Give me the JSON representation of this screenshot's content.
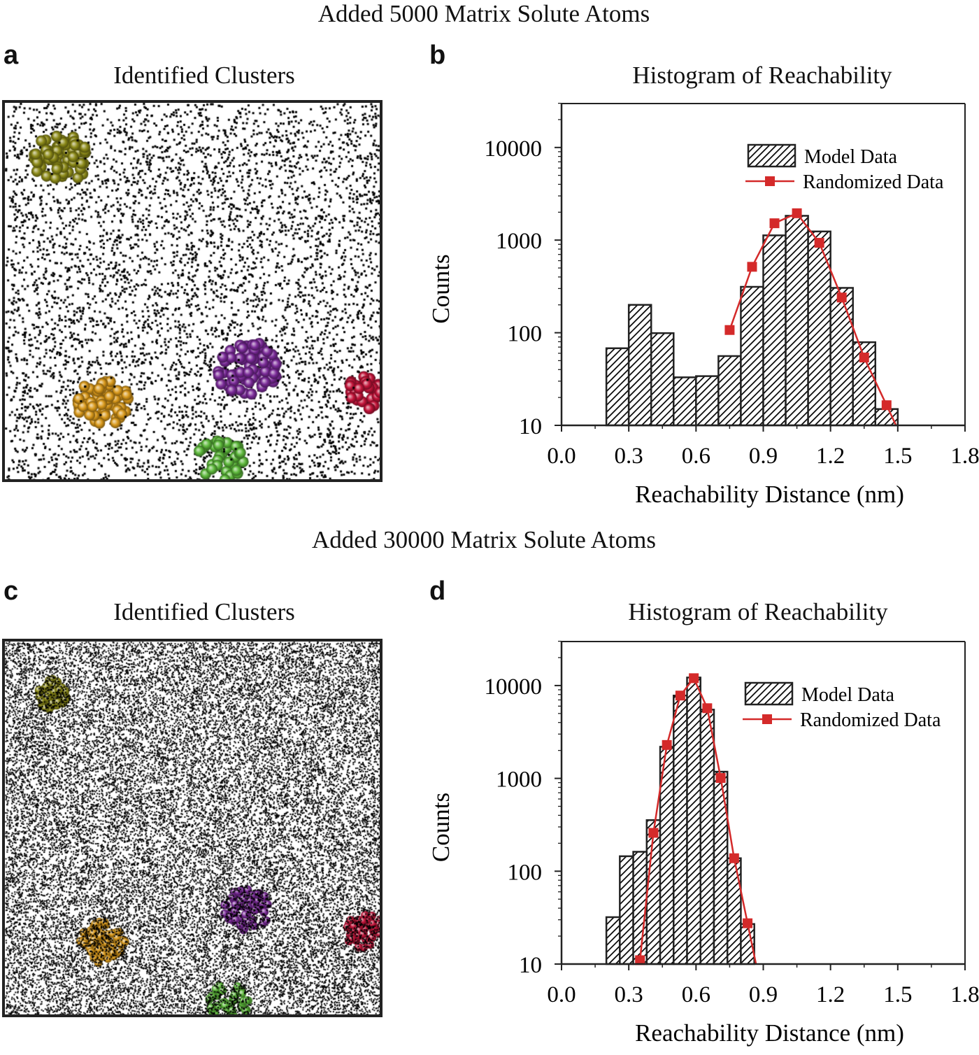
{
  "figure": {
    "top_heading": "Added 5000 Matrix Solute Atoms",
    "bottom_heading": "Added 30000 Matrix Solute Atoms"
  },
  "panels": {
    "a": {
      "letter": "a",
      "title": "Identified Clusters",
      "matrix_atoms": 5000
    },
    "c": {
      "letter": "c",
      "title": "Identified Clusters",
      "matrix_atoms": 30000
    },
    "b": {
      "letter": "b",
      "title": "Histogram of Reachability"
    },
    "d": {
      "letter": "d",
      "title": "Histogram of Reachability"
    }
  },
  "cluster_colors": {
    "olive": "#8c8a18",
    "orange": "#d8981a",
    "purple": "#7a2a98",
    "red": "#c4143a",
    "green": "#5cb83a"
  },
  "colors": {
    "randomized": "#d42a2a",
    "bars": "#000000"
  },
  "chart_data": [
    {
      "id": "b",
      "type": "bar",
      "title": "Histogram of Reachability",
      "xlabel": "Reachability Distance (nm)",
      "ylabel": "Counts",
      "xlim": [
        0.0,
        1.8
      ],
      "ylim": [
        10,
        30000
      ],
      "yscale": "log",
      "xticks": [
        "0.0",
        "0.3",
        "0.6",
        "0.9",
        "1.2",
        "1.5",
        "1.8"
      ],
      "yticks": [
        "10",
        "100",
        "1000",
        "10000"
      ],
      "legend": {
        "placement": "top-right",
        "entries": [
          "Model Data",
          "Randomized Data"
        ]
      },
      "grid": false,
      "series": [
        {
          "name": "Model Data",
          "type": "bar",
          "bin_start": 0.2,
          "bin_width": 0.1,
          "values": [
            68,
            200,
            99,
            33,
            34,
            56,
            313,
            1125,
            1830,
            1240,
            305,
            79,
            15
          ]
        },
        {
          "name": "Randomized Data",
          "type": "line",
          "x": [
            0.75,
            0.85,
            0.95,
            1.05,
            1.15,
            1.25,
            1.35,
            1.45
          ],
          "values": [
            107,
            515,
            1520,
            1950,
            935,
            240,
            54,
            16.5
          ]
        }
      ]
    },
    {
      "id": "d",
      "type": "bar",
      "title": "Histogram of Reachability",
      "xlabel": "Reachability Distance (nm)",
      "ylabel": "Counts",
      "xlim": [
        0.0,
        1.8
      ],
      "ylim": [
        10,
        30000
      ],
      "yscale": "log",
      "xticks": [
        "0.0",
        "0.3",
        "0.6",
        "0.9",
        "1.2",
        "1.5",
        "1.8"
      ],
      "yticks": [
        "10",
        "100",
        "1000",
        "10000"
      ],
      "legend": {
        "placement": "top-right",
        "entries": [
          "Model Data",
          "Randomized Data"
        ]
      },
      "grid": false,
      "series": [
        {
          "name": "Model Data",
          "type": "bar",
          "bin_start": 0.2,
          "bin_width": 0.06,
          "values": [
            32,
            145,
            162,
            355,
            2190,
            7800,
            12200,
            5500,
            1180,
            138,
            27
          ]
        },
        {
          "name": "Randomized Data",
          "type": "line",
          "x": [
            0.35,
            0.41,
            0.47,
            0.53,
            0.59,
            0.65,
            0.71,
            0.77,
            0.83
          ],
          "values": [
            11,
            259,
            2290,
            7800,
            12000,
            5700,
            1010,
            138,
            27.5
          ]
        }
      ]
    }
  ]
}
